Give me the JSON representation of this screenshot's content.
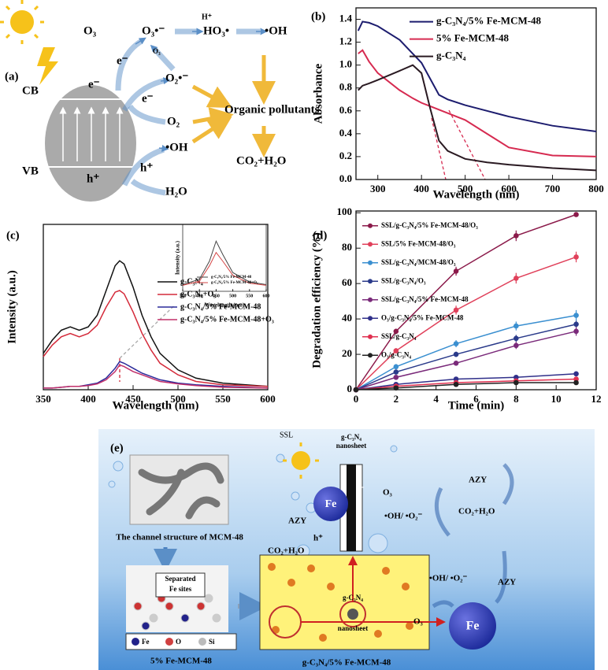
{
  "chart_data": [
    {
      "type": "line",
      "panel_label": "(b)",
      "x_label": "Wavelength (nm)",
      "y_label": "Absorbance",
      "x": [
        255,
        265,
        280,
        300,
        350,
        380,
        400,
        420,
        440,
        460,
        500,
        550,
        600,
        700,
        800
      ],
      "series": [
        {
          "name": "g-C₃N₄/5% Fe-MCM-48",
          "color": "#1c1c6e",
          "values": [
            1.3,
            1.38,
            1.37,
            1.34,
            1.22,
            1.1,
            1.02,
            0.88,
            0.74,
            0.7,
            0.65,
            0.6,
            0.55,
            0.47,
            0.42
          ]
        },
        {
          "name": "5% Fe-MCM-48",
          "color": "#d62a50",
          "values": [
            1.1,
            1.13,
            1.03,
            0.93,
            0.78,
            0.71,
            0.67,
            0.64,
            0.61,
            0.58,
            0.52,
            0.4,
            0.28,
            0.21,
            0.2
          ]
        },
        {
          "name": "g-C₃N₄",
          "color": "#2a1a22",
          "values": [
            0.78,
            0.82,
            0.84,
            0.87,
            0.95,
            1.0,
            0.93,
            0.62,
            0.34,
            0.25,
            0.18,
            0.15,
            0.13,
            0.1,
            0.08
          ]
        }
      ],
      "xlim": [
        250,
        800
      ],
      "xticks": [
        300,
        400,
        500,
        600,
        700,
        800
      ],
      "ylim": [
        0,
        1.5
      ],
      "yticks": [
        {
          "value": 0,
          "label": "0.0"
        },
        {
          "value": 0.2,
          "label": "0.2"
        },
        {
          "value": 0.4,
          "label": "0.4"
        },
        {
          "value": 0.6,
          "label": "0.6"
        },
        {
          "value": 0.8,
          "label": "0.8"
        },
        {
          "value": 1,
          "label": "1.0"
        },
        {
          "value": 1.2,
          "label": "1.2"
        },
        {
          "value": 1.4,
          "label": "1.4"
        }
      ],
      "legend": "upper right"
    },
    {
      "type": "line",
      "panel_label": "(c)",
      "x_label": "Wavelength (nm)",
      "y_label": "Intensity (a.u.)",
      "x": [
        350,
        360,
        370,
        380,
        390,
        400,
        410,
        420,
        430,
        435,
        440,
        450,
        460,
        470,
        480,
        500,
        520,
        550,
        600
      ],
      "series": [
        {
          "name": "g-C₃N₄",
          "color": "#111111",
          "values": [
            22,
            30,
            36,
            38,
            36,
            38,
            45,
            60,
            75,
            78,
            76,
            62,
            45,
            32,
            22,
            12,
            7,
            4,
            2
          ]
        },
        {
          "name": "g-C₃N₄+O₃",
          "color": "#d42a3a",
          "values": [
            20,
            27,
            32,
            34,
            32,
            34,
            39,
            50,
            59,
            60,
            58,
            47,
            34,
            24,
            16,
            9,
            5,
            3,
            2
          ]
        },
        {
          "name": "g-C₃N₄/5% Fe-MCM-48",
          "color": "#2a2a9a",
          "values": [
            1,
            1,
            1.5,
            2,
            2,
            3,
            4,
            7,
            13,
            17,
            16,
            13,
            10,
            8,
            6,
            4,
            3,
            2,
            1
          ]
        },
        {
          "name": "g-C₃N₄/5% Fe-MCM-48+O₃",
          "color": "#c2306a",
          "values": [
            1,
            1,
            1.5,
            2,
            2,
            2.5,
            3.5,
            6,
            11,
            15,
            14,
            11,
            9,
            7,
            5,
            3.5,
            2.5,
            1.5,
            1
          ]
        }
      ],
      "xlim": [
        350,
        600
      ],
      "xticks": [
        350,
        400,
        450,
        500,
        550,
        600
      ],
      "ylim": [
        0,
        100
      ],
      "legend": "center right"
    },
    {
      "type": "line",
      "x_label": "Wavelength (nm)",
      "y_label": "Intensity (a.u.)",
      "x": [
        350,
        400,
        430,
        450,
        470,
        500,
        550,
        600
      ],
      "series": [
        {
          "name": "g-C₃N₄/5% Fe-MCM-48",
          "color": "#444444",
          "values": [
            10,
            18,
            45,
            75,
            55,
            28,
            14,
            10
          ]
        },
        {
          "name": "g-C₃N₄/5% Fe-MCM-48+O₃",
          "color": "#d44444",
          "values": [
            9,
            15,
            38,
            58,
            45,
            24,
            12,
            9
          ]
        }
      ],
      "xlim": [
        350,
        600
      ],
      "xticks": [
        350,
        400,
        450,
        500,
        550,
        600
      ],
      "ylim": [
        0,
        100
      ],
      "legend": "lower center"
    },
    {
      "type": "line",
      "markers": true,
      "panel_label": "(d)",
      "x_label": "Time (min)",
      "y_label": "Degradation efficiency (%)",
      "x": [
        0,
        2,
        5,
        8,
        11
      ],
      "series": [
        {
          "name": "SSL/g-C₃N₄/5% Fe-MCM-48/O₃",
          "color": "#8b1a4a",
          "values": [
            0,
            33,
            67,
            87,
            99
          ],
          "errors": [
            0,
            1.5,
            2.5,
            3,
            1
          ]
        },
        {
          "name": "SSL/5% Fe-MCM-48/O₃",
          "color": "#e0405a",
          "values": [
            0,
            22,
            45,
            63,
            75
          ],
          "errors": [
            0,
            1.5,
            2.5,
            3,
            3
          ]
        },
        {
          "name": "SSL/g-C₃N₄/MCM-48/O₃",
          "color": "#3a8fd0",
          "values": [
            0,
            13,
            26,
            36,
            42
          ],
          "errors": [
            0,
            1.5,
            2,
            2.5,
            3
          ]
        },
        {
          "name": "SSL/g-C₃N₄/O₃",
          "color": "#2a3a8a",
          "values": [
            0,
            10,
            20,
            29,
            37
          ],
          "errors": [
            0,
            1,
            1.5,
            2,
            2
          ]
        },
        {
          "name": "SSL/g-C₃N₄/5% Fe-MCM-48",
          "color": "#7a2a7a",
          "values": [
            0,
            7,
            15,
            25,
            33
          ],
          "errors": [
            0,
            1,
            1,
            2,
            2.5
          ]
        },
        {
          "name": "O₃/g-C₃N₄/5% Fe-MCM-48",
          "color": "#30308a",
          "values": [
            0,
            3,
            6,
            7,
            9
          ],
          "errors": [
            0,
            0.5,
            0.5,
            1,
            1
          ]
        },
        {
          "name": "SSL/g-C₃N₄",
          "color": "#e03050",
          "values": [
            0,
            2,
            4,
            5,
            6
          ],
          "errors": [
            0,
            0.5,
            0.5,
            0.5,
            1
          ]
        },
        {
          "name": "O₃/g-C₃N₄",
          "color": "#222222",
          "values": [
            0,
            1,
            3,
            4,
            4
          ],
          "errors": [
            0,
            0.5,
            0.5,
            0.5,
            0.5
          ]
        }
      ],
      "xlim": [
        0,
        12
      ],
      "xticks": [
        0,
        2,
        4,
        6,
        8,
        10,
        12
      ],
      "ylim": [
        0,
        101
      ],
      "yticks": [
        0,
        20,
        40,
        60,
        80,
        100
      ],
      "legend": "upper left"
    }
  ],
  "diagram_a": {
    "labels": [
      "(a)",
      "CB",
      "e⁻",
      "VB",
      "h⁺",
      "O₃",
      "e⁻",
      "O₃•⁻",
      "H⁺",
      "HO₃•",
      "•OH",
      "O₃",
      "O₂•⁻",
      "e⁻",
      "O₂",
      "Organic pollutants",
      "•OH",
      "h⁺",
      "H₂O",
      "CO₂+H₂O"
    ]
  },
  "diagram_e": {
    "labels": [
      "(e)",
      "The channel structure of MCM-48",
      "Separated",
      "Fe sites",
      "Fe",
      "O",
      "Si",
      "5% Fe-MCM-48",
      "SSL",
      "g-C₃N₄",
      "nanosheet",
      "Fe",
      "e⁻",
      "h⁺",
      "AZY",
      "CO₂+H₂O",
      "O₃",
      "•OH/ •O₂⁻",
      "AZY",
      "CO₂+H₂O",
      "•OH/ •O₂⁻",
      "AZY",
      "O₃",
      "Fe",
      "g-C₃N₄",
      "nanosheet",
      "g-C₃N₄/5% Fe-MCM-48"
    ]
  }
}
